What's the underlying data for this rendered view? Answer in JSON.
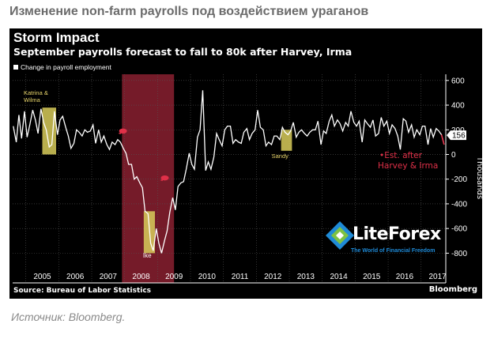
{
  "page_heading": "Изменение non-farm payrolls под воздействием ураганов",
  "caption": "Источник: Bloomberg.",
  "colors": {
    "line": "#ffffff",
    "recession": "#8a2030",
    "highlight": "#d8cc5a",
    "marker": "#e03048",
    "current_badge": "#ffffff"
  },
  "watermark": {
    "name": "LiteForex",
    "tagline": "The World of Financial Freedom",
    "icon": "liteforex-logo-icon"
  },
  "chart_data": {
    "type": "line",
    "title": "Storm Impact",
    "subtitle": "September payrolls forecast to fall to 80k after Harvey, Irma",
    "legend": "Change in payroll employment",
    "source": "Source: Bureau of Labor Statistics",
    "brand": "Bloomberg",
    "ylabel": "Thousands",
    "xlim": [
      2004.6,
      2017.75
    ],
    "ylim": [
      -900,
      650
    ],
    "yticks": [
      600,
      400,
      200,
      0,
      -200,
      -400,
      -600,
      -800
    ],
    "year_labels": [
      "2005",
      "2006",
      "2007",
      "2008",
      "2009",
      "2010",
      "2011",
      "2012",
      "2013",
      "2014",
      "2015",
      "2016",
      "2017"
    ],
    "last_value": "156",
    "current_marker": 156,
    "recession_band": [
      2007.92,
      2009.5
    ],
    "highlights": [
      {
        "label": "Katrina &\nWilma",
        "range": [
          2005.5,
          2005.92
        ],
        "values": [
          380,
          0
        ]
      },
      {
        "label": "Ike",
        "range": [
          2008.58,
          2008.92
        ],
        "values": [
          -460,
          -800
        ]
      },
      {
        "label": "Sandy",
        "range": [
          2012.75,
          2013.08
        ],
        "values": [
          200,
          30
        ]
      }
    ],
    "markers": [
      {
        "x": 2007.95,
        "y": 190
      },
      {
        "x": 2009.22,
        "y": -190
      }
    ],
    "forecast_note": "•Est. after\nHarvey & Irma",
    "series": [
      {
        "values": [
          [
            2004.62,
            230
          ],
          [
            2004.71,
            100
          ],
          [
            2004.79,
            320
          ],
          [
            2004.87,
            130
          ],
          [
            2004.96,
            350
          ],
          [
            2005.04,
            140
          ],
          [
            2005.12,
            240
          ],
          [
            2005.21,
            360
          ],
          [
            2005.29,
            280
          ],
          [
            2005.37,
            170
          ],
          [
            2005.46,
            370
          ],
          [
            2005.54,
            260
          ],
          [
            2005.62,
            200
          ],
          [
            2005.71,
            60
          ],
          [
            2005.79,
            80
          ],
          [
            2005.87,
            350
          ],
          [
            2005.96,
            160
          ],
          [
            2006.04,
            280
          ],
          [
            2006.12,
            310
          ],
          [
            2006.21,
            220
          ],
          [
            2006.29,
            150
          ],
          [
            2006.37,
            50
          ],
          [
            2006.46,
            90
          ],
          [
            2006.54,
            200
          ],
          [
            2006.62,
            180
          ],
          [
            2006.71,
            150
          ],
          [
            2006.79,
            200
          ],
          [
            2006.87,
            180
          ],
          [
            2006.96,
            190
          ],
          [
            2007.04,
            240
          ],
          [
            2007.12,
            90
          ],
          [
            2007.21,
            200
          ],
          [
            2007.29,
            100
          ],
          [
            2007.37,
            150
          ],
          [
            2007.46,
            80
          ],
          [
            2007.54,
            40
          ],
          [
            2007.62,
            100
          ],
          [
            2007.71,
            80
          ],
          [
            2007.79,
            120
          ],
          [
            2007.87,
            100
          ],
          [
            2007.96,
            50
          ],
          [
            2008.04,
            10
          ],
          [
            2008.12,
            -80
          ],
          [
            2008.21,
            -80
          ],
          [
            2008.29,
            -200
          ],
          [
            2008.37,
            -180
          ],
          [
            2008.46,
            -230
          ],
          [
            2008.54,
            -270
          ],
          [
            2008.62,
            -460
          ],
          [
            2008.71,
            -480
          ],
          [
            2008.79,
            -720
          ],
          [
            2008.87,
            -780
          ],
          [
            2008.96,
            -600
          ],
          [
            2009.04,
            -720
          ],
          [
            2009.12,
            -800
          ],
          [
            2009.21,
            -700
          ],
          [
            2009.29,
            -620
          ],
          [
            2009.37,
            -470
          ],
          [
            2009.46,
            -350
          ],
          [
            2009.54,
            -450
          ],
          [
            2009.62,
            -260
          ],
          [
            2009.71,
            -230
          ],
          [
            2009.79,
            -220
          ],
          [
            2009.87,
            -120
          ],
          [
            2009.96,
            10
          ],
          [
            2010.04,
            -80
          ],
          [
            2010.12,
            -120
          ],
          [
            2010.21,
            140
          ],
          [
            2010.29,
            200
          ],
          [
            2010.37,
            520
          ],
          [
            2010.46,
            -130
          ],
          [
            2010.54,
            -60
          ],
          [
            2010.62,
            -120
          ],
          [
            2010.71,
            -20
          ],
          [
            2010.79,
            170
          ],
          [
            2010.87,
            120
          ],
          [
            2010.96,
            70
          ],
          [
            2011.04,
            200
          ],
          [
            2011.12,
            230
          ],
          [
            2011.21,
            230
          ],
          [
            2011.29,
            90
          ],
          [
            2011.37,
            120
          ],
          [
            2011.46,
            100
          ],
          [
            2011.54,
            90
          ],
          [
            2011.62,
            180
          ],
          [
            2011.71,
            210
          ],
          [
            2011.79,
            120
          ],
          [
            2011.87,
            170
          ],
          [
            2011.96,
            200
          ],
          [
            2012.04,
            360
          ],
          [
            2012.12,
            220
          ],
          [
            2012.21,
            200
          ],
          [
            2012.29,
            70
          ],
          [
            2012.37,
            100
          ],
          [
            2012.46,
            80
          ],
          [
            2012.54,
            150
          ],
          [
            2012.62,
            150
          ],
          [
            2012.71,
            120
          ],
          [
            2012.79,
            220
          ],
          [
            2012.87,
            180
          ],
          [
            2012.96,
            160
          ],
          [
            2013.04,
            190
          ],
          [
            2013.12,
            260
          ],
          [
            2013.21,
            140
          ],
          [
            2013.29,
            180
          ],
          [
            2013.37,
            200
          ],
          [
            2013.46,
            170
          ],
          [
            2013.54,
            150
          ],
          [
            2013.62,
            180
          ],
          [
            2013.71,
            200
          ],
          [
            2013.79,
            200
          ],
          [
            2013.87,
            270
          ],
          [
            2013.96,
            80
          ],
          [
            2014.04,
            190
          ],
          [
            2014.12,
            170
          ],
          [
            2014.21,
            270
          ],
          [
            2014.29,
            320
          ],
          [
            2014.37,
            230
          ],
          [
            2014.46,
            280
          ],
          [
            2014.54,
            250
          ],
          [
            2014.62,
            190
          ],
          [
            2014.71,
            260
          ],
          [
            2014.79,
            230
          ],
          [
            2014.87,
            350
          ],
          [
            2014.96,
            260
          ],
          [
            2015.04,
            230
          ],
          [
            2015.12,
            270
          ],
          [
            2015.21,
            100
          ],
          [
            2015.29,
            280
          ],
          [
            2015.37,
            250
          ],
          [
            2015.46,
            220
          ],
          [
            2015.54,
            280
          ],
          [
            2015.62,
            150
          ],
          [
            2015.71,
            170
          ],
          [
            2015.79,
            300
          ],
          [
            2015.87,
            230
          ],
          [
            2015.96,
            270
          ],
          [
            2016.04,
            170
          ],
          [
            2016.12,
            240
          ],
          [
            2016.21,
            210
          ],
          [
            2016.29,
            150
          ],
          [
            2016.37,
            40
          ],
          [
            2016.46,
            290
          ],
          [
            2016.54,
            270
          ],
          [
            2016.62,
            180
          ],
          [
            2016.71,
            240
          ],
          [
            2016.79,
            140
          ],
          [
            2016.87,
            200
          ],
          [
            2016.96,
            160
          ],
          [
            2017.04,
            230
          ],
          [
            2017.12,
            230
          ],
          [
            2017.21,
            80
          ],
          [
            2017.29,
            210
          ],
          [
            2017.37,
            140
          ],
          [
            2017.46,
            210
          ],
          [
            2017.54,
            190
          ],
          [
            2017.62,
            160
          ],
          [
            2017.7,
            80
          ]
        ]
      }
    ]
  }
}
